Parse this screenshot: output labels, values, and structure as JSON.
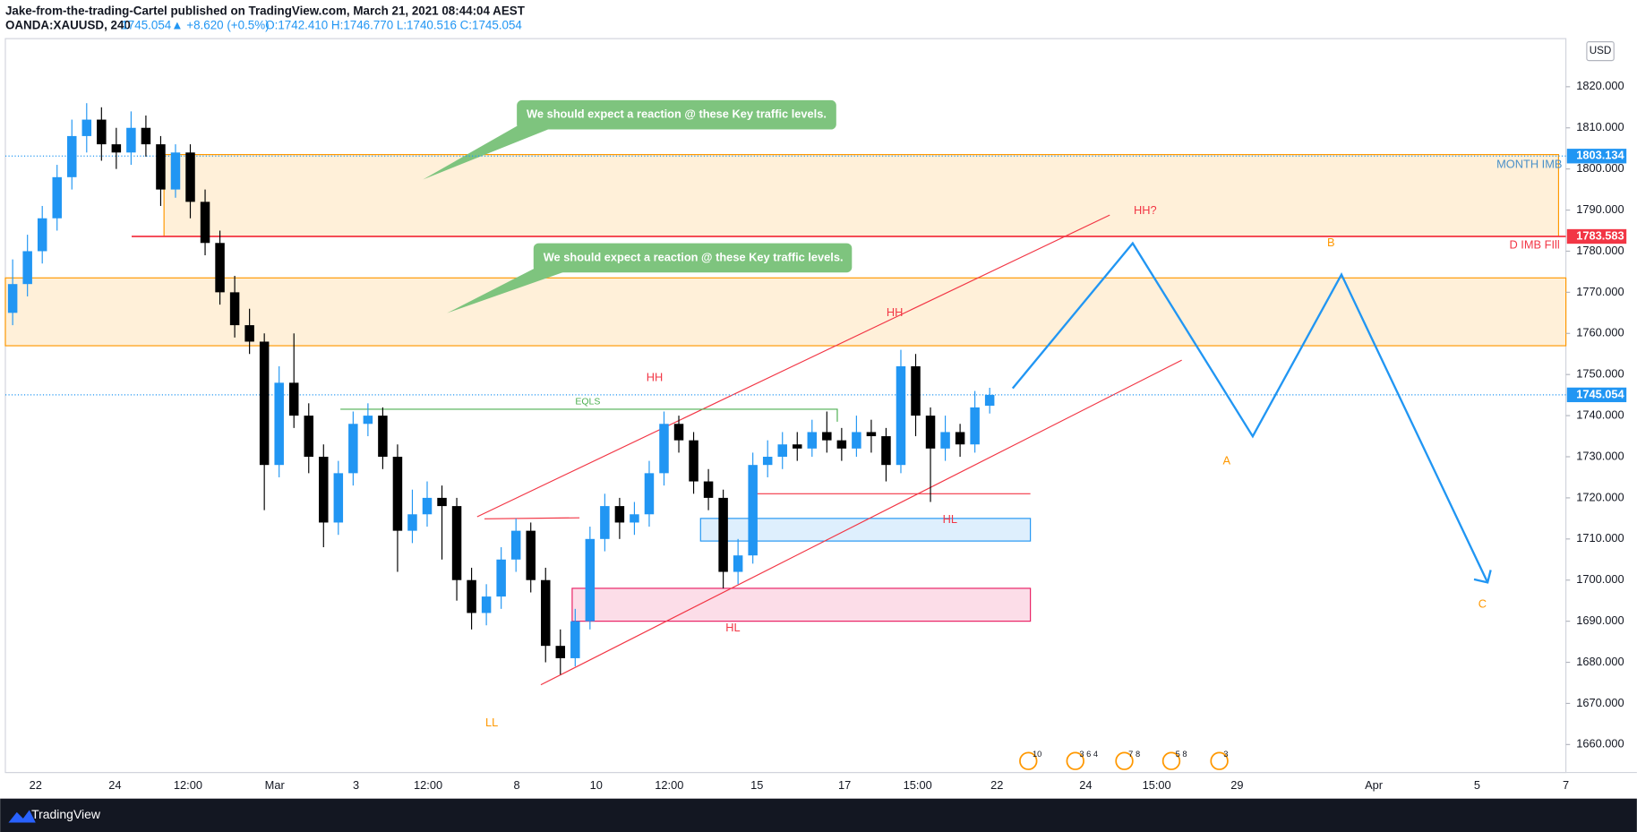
{
  "header": {
    "publisher": "Jake-from-the-trading-Cartel published on TradingView.com, March 21, 2021 08:44:04 AEST",
    "symbol": "OANDA:XAUUSD, 240",
    "last": "1745.054",
    "change": "▲ +8.620 (+0.5%)",
    "ohlc_text": "O:1742.410 H:1746.770 L:1740.516 C:1745.054"
  },
  "chart_data": {
    "type": "candlestick",
    "currency": "USD",
    "ohlc": [
      [
        1765,
        1778,
        1762,
        1772
      ],
      [
        1772,
        1784,
        1769,
        1780
      ],
      [
        1780,
        1791,
        1777,
        1788
      ],
      [
        1788,
        1801,
        1785,
        1798
      ],
      [
        1798,
        1812,
        1795,
        1808
      ],
      [
        1808,
        1816,
        1804,
        1812
      ],
      [
        1812,
        1815,
        1802,
        1806
      ],
      [
        1806,
        1810,
        1800,
        1804
      ],
      [
        1804,
        1814,
        1801,
        1810
      ],
      [
        1810,
        1813,
        1803,
        1806
      ],
      [
        1806,
        1808,
        1791,
        1795
      ],
      [
        1795,
        1806,
        1793,
        1804
      ],
      [
        1804,
        1806,
        1788,
        1792
      ],
      [
        1792,
        1795,
        1779,
        1782
      ],
      [
        1782,
        1785,
        1767,
        1770
      ],
      [
        1770,
        1774,
        1759,
        1762
      ],
      [
        1762,
        1766,
        1755,
        1758
      ],
      [
        1758,
        1760,
        1717,
        1728
      ],
      [
        1728,
        1752,
        1725,
        1748
      ],
      [
        1748,
        1760,
        1737,
        1740
      ],
      [
        1740,
        1743,
        1726,
        1730
      ],
      [
        1730,
        1733,
        1708,
        1714
      ],
      [
        1714,
        1729,
        1711,
        1726
      ],
      [
        1726,
        1741,
        1723,
        1738
      ],
      [
        1738,
        1743,
        1735,
        1740
      ],
      [
        1740,
        1742,
        1727,
        1730
      ],
      [
        1730,
        1733,
        1702,
        1712
      ],
      [
        1712,
        1722,
        1709,
        1716
      ],
      [
        1716,
        1724,
        1713,
        1720
      ],
      [
        1720,
        1723,
        1705,
        1718
      ],
      [
        1718,
        1720,
        1695,
        1700
      ],
      [
        1700,
        1703,
        1688,
        1692
      ],
      [
        1692,
        1699,
        1689,
        1696
      ],
      [
        1696,
        1708,
        1693,
        1705
      ],
      [
        1705,
        1715,
        1702,
        1712
      ],
      [
        1712,
        1714,
        1697,
        1700
      ],
      [
        1700,
        1703,
        1680,
        1684
      ],
      [
        1684,
        1688,
        1677,
        1681
      ],
      [
        1681,
        1693,
        1679,
        1690
      ],
      [
        1690,
        1713,
        1688,
        1710
      ],
      [
        1710,
        1721,
        1707,
        1718
      ],
      [
        1718,
        1720,
        1710,
        1714
      ],
      [
        1714,
        1719,
        1711,
        1716
      ],
      [
        1716,
        1729,
        1713,
        1726
      ],
      [
        1726,
        1741,
        1723,
        1738
      ],
      [
        1738,
        1740,
        1731,
        1734
      ],
      [
        1734,
        1736,
        1721,
        1724
      ],
      [
        1724,
        1727,
        1717,
        1720
      ],
      [
        1720,
        1722,
        1698,
        1702
      ],
      [
        1702,
        1710,
        1699,
        1706
      ],
      [
        1706,
        1731,
        1704,
        1728
      ],
      [
        1728,
        1734,
        1725,
        1730
      ],
      [
        1730,
        1736,
        1727,
        1733
      ],
      [
        1733,
        1736,
        1729,
        1732
      ],
      [
        1732,
        1739,
        1730,
        1736
      ],
      [
        1736,
        1741,
        1731,
        1734
      ],
      [
        1734,
        1737,
        1729,
        1732
      ],
      [
        1732,
        1740,
        1730,
        1736
      ],
      [
        1736,
        1739,
        1731,
        1735
      ],
      [
        1735,
        1737,
        1724,
        1728
      ],
      [
        1728,
        1756,
        1726,
        1752
      ],
      [
        1752,
        1755,
        1735,
        1740
      ],
      [
        1740,
        1742,
        1719,
        1732
      ],
      [
        1732,
        1740,
        1729,
        1736
      ],
      [
        1736,
        1738,
        1730,
        1733
      ],
      [
        1733,
        1746,
        1731,
        1742
      ],
      [
        1742.41,
        1746.77,
        1740.516,
        1745.054
      ]
    ],
    "up_color": "#2196f3",
    "down_color": "#000000",
    "ylim": [
      1653.2,
      1831.7
    ],
    "yticks": [
      {
        "value": 1660,
        "label": "1660.000"
      },
      {
        "value": 1670,
        "label": "1670.000"
      },
      {
        "value": 1680,
        "label": "1680.000"
      },
      {
        "value": 1690,
        "label": "1690.000"
      },
      {
        "value": 1700,
        "label": "1700.000"
      },
      {
        "value": 1710,
        "label": "1710.000"
      },
      {
        "value": 1720,
        "label": "1720.000"
      },
      {
        "value": 1730,
        "label": "1730.000"
      },
      {
        "value": 1740,
        "label": "1740.000"
      },
      {
        "value": 1750,
        "label": "1750.000"
      },
      {
        "value": 1760,
        "label": "1760.000"
      },
      {
        "value": 1770,
        "label": "1770.000"
      },
      {
        "value": 1780,
        "label": "1780.000"
      },
      {
        "value": 1790,
        "label": "1790.000"
      },
      {
        "value": 1800,
        "label": "1800.000"
      },
      {
        "value": 1810,
        "label": "1810.000"
      },
      {
        "value": 1820,
        "label": "1820.000"
      }
    ],
    "x_labels": [
      "22",
      "24",
      "12:00",
      "Mar",
      "3",
      "12:00",
      "8",
      "10",
      "12:00",
      "15",
      "17",
      "15:00",
      "22",
      "24",
      "15:00",
      "29",
      "Apr",
      "5",
      "7"
    ],
    "price_labels": [
      {
        "value": 1803.134,
        "color": "#2196f3"
      },
      {
        "value": 1783.583,
        "color": "#f23645"
      },
      {
        "value": 1745.054,
        "color": "#2196f3"
      }
    ],
    "zones": [
      {
        "top": 1803.5,
        "bottom": 1783.6,
        "color": "#ff9800"
      },
      {
        "top": 1773.5,
        "bottom": 1757,
        "color": "#ff9800"
      },
      {
        "top": 1715,
        "bottom": 1709.5,
        "color": "#2196f3"
      },
      {
        "top": 1698,
        "bottom": 1690,
        "color": "#e91e63"
      }
    ],
    "annotations": [
      {
        "text": "HH?",
        "color": "#f23645"
      },
      {
        "text": "HH",
        "color": "#f23645"
      },
      {
        "text": "HH",
        "color": "#f23645"
      },
      {
        "text": "EQLS",
        "color": "#4caf50"
      },
      {
        "text": "HL",
        "color": "#f23645"
      },
      {
        "text": "HL",
        "color": "#f23645"
      },
      {
        "text": "LL",
        "color": "#ff9800"
      },
      {
        "text": "A",
        "color": "#ff9800"
      },
      {
        "text": "B",
        "color": "#ff9800"
      },
      {
        "text": "C",
        "color": "#ff9800"
      },
      {
        "text": "MONTH IMB",
        "color": "#4a90c8"
      },
      {
        "text": "D IMB FIll",
        "color": "#f23645"
      }
    ],
    "callouts": [
      "We should expect a reaction @ these Key traffic levels.",
      "We should expect a reaction @ these Key traffic levels."
    ],
    "events": [
      "10",
      "3 6 4",
      "7 8",
      "5 8",
      "3"
    ]
  },
  "footer": {
    "brand": "TradingView"
  }
}
